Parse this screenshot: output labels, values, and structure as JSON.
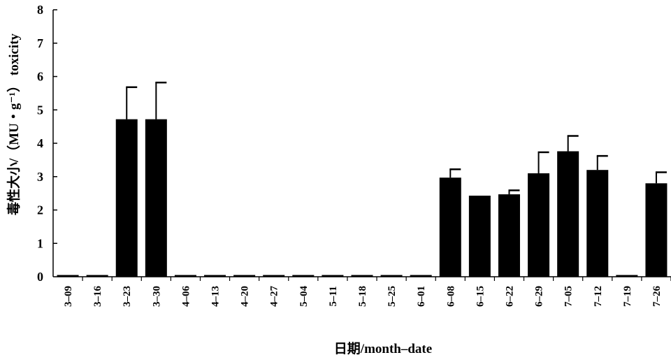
{
  "chart_data": {
    "type": "bar",
    "xlabel": "日期/month–date",
    "ylabel": "毒性大小/（MU・g⁻¹） toxicity",
    "ylim": [
      0,
      8
    ],
    "yticks": [
      "0",
      "1",
      "2",
      "3",
      "4",
      "5",
      "6",
      "7",
      "8"
    ],
    "grid": false,
    "categories": [
      "3–09",
      "3–16",
      "3–23",
      "3–30",
      "4–06",
      "4–13",
      "4–20",
      "4–27",
      "5–04",
      "5–11",
      "5–18",
      "5–25",
      "6–01",
      "6–08",
      "6–15",
      "6–22",
      "6–29",
      "7–05",
      "7–12",
      "7–19",
      "7–26"
    ],
    "values": [
      0,
      0,
      4.72,
      4.72,
      0,
      0,
      0,
      0,
      0,
      0,
      0,
      0,
      0,
      2.97,
      2.43,
      2.47,
      3.1,
      3.76,
      3.2,
      0,
      2.8
    ],
    "error_upper": [
      0,
      0,
      0.96,
      1.1,
      0,
      0,
      0,
      0,
      0,
      0,
      0,
      0,
      0,
      0.25,
      0,
      0.12,
      0.63,
      0.46,
      0.42,
      0,
      0.33
    ],
    "bar_color": "#000000"
  }
}
